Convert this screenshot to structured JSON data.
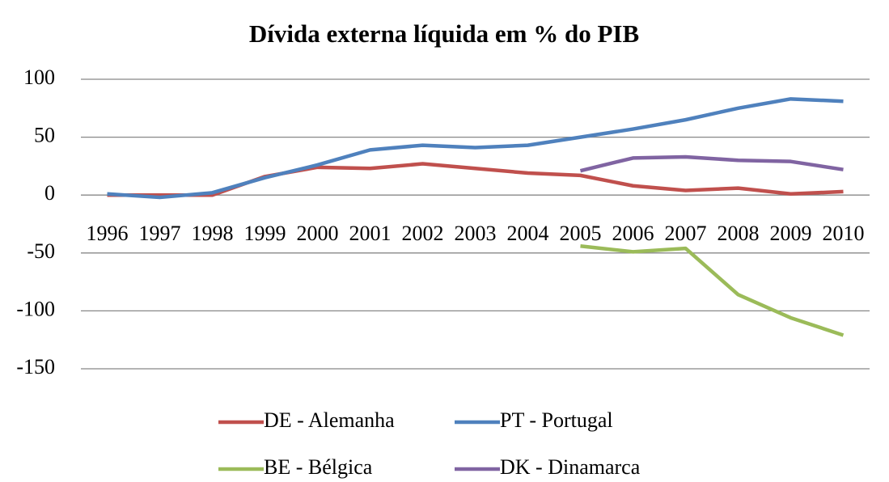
{
  "chart_data": {
    "type": "line",
    "title": "Dívida externa líquida em % do PIB",
    "categories": [
      "1996",
      "1997",
      "1998",
      "1999",
      "2000",
      "2001",
      "2002",
      "2003",
      "2004",
      "2005",
      "2006",
      "2007",
      "2008",
      "2009",
      "2010"
    ],
    "series": [
      {
        "name": "DE - Alemanha",
        "color": "#c0504d",
        "values": [
          0,
          0,
          0,
          16,
          24,
          23,
          27,
          23,
          19,
          17,
          8,
          4,
          6,
          1,
          3
        ]
      },
      {
        "name": "PT - Portugal",
        "color": "#4f81bd",
        "values": [
          1,
          -2,
          2,
          15,
          26,
          39,
          43,
          41,
          43,
          50,
          57,
          65,
          75,
          83,
          81
        ]
      },
      {
        "name": "BE - Bélgica",
        "color": "#9bbb59",
        "values": [
          null,
          null,
          null,
          null,
          null,
          null,
          null,
          null,
          null,
          -44,
          -49,
          -46,
          -86,
          -106,
          -121
        ]
      },
      {
        "name": "DK - Dinamarca",
        "color": "#8064a2",
        "values": [
          null,
          null,
          null,
          null,
          null,
          null,
          null,
          null,
          null,
          21,
          32,
          33,
          30,
          29,
          22
        ]
      }
    ],
    "ylim": [
      -150,
      100
    ],
    "yticks": [
      -150,
      -100,
      -50,
      0,
      50,
      100
    ],
    "grid": true,
    "legend": "bottom"
  }
}
